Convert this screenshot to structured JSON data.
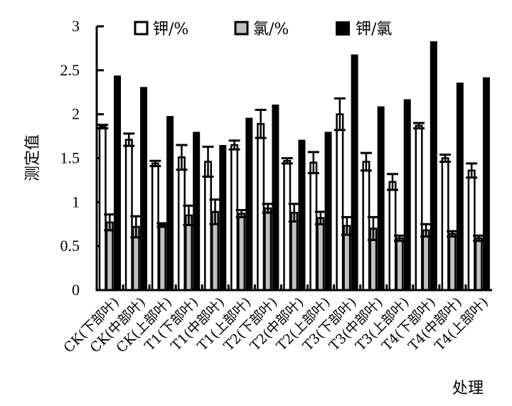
{
  "chart_data": {
    "type": "bar",
    "title": "",
    "xlabel": "处理",
    "ylabel": "测定值",
    "ylim": [
      0,
      3
    ],
    "yticks": [
      "0",
      "0.5",
      "1",
      "1.5",
      "2",
      "2.5",
      "3"
    ],
    "ytick_values": [
      0,
      0.5,
      1,
      1.5,
      2,
      2.5,
      3
    ],
    "grid": false,
    "legend_position": "top",
    "categories": [
      "CK(下部叶)",
      "CK(中部叶)",
      "CK(上部叶)",
      "T1(下部叶)",
      "T1(中部叶)",
      "T1(上部叶)",
      "T2(下部叶)",
      "T2(中部叶)",
      "T2(上部叶)",
      "T3(下部叶)",
      "T3(中部叶)",
      "T3(上部叶)",
      "T4(下部叶)",
      "T4(中部叶)",
      "T4(上部叶)"
    ],
    "series": [
      {
        "name": "钾/%",
        "fill": "#ffffff",
        "values": [
          1.86,
          1.71,
          1.44,
          1.51,
          1.46,
          1.65,
          1.89,
          1.47,
          1.45,
          2.0,
          1.46,
          1.23,
          1.87,
          1.5,
          1.36
        ],
        "errors": [
          0.02,
          0.07,
          0.03,
          0.14,
          0.17,
          0.05,
          0.16,
          0.03,
          0.12,
          0.18,
          0.1,
          0.09,
          0.03,
          0.04,
          0.08
        ]
      },
      {
        "name": "氯/%",
        "fill": "#c0c0c0",
        "values": [
          0.77,
          0.72,
          0.74,
          0.85,
          0.89,
          0.87,
          0.93,
          0.88,
          0.82,
          0.73,
          0.7,
          0.59,
          0.68,
          0.64,
          0.59
        ],
        "errors": [
          0.09,
          0.12,
          0.02,
          0.11,
          0.14,
          0.04,
          0.05,
          0.1,
          0.07,
          0.1,
          0.13,
          0.03,
          0.07,
          0.03,
          0.03
        ]
      },
      {
        "name": "钾/氯",
        "fill": "#000000",
        "values": [
          2.44,
          2.31,
          1.98,
          1.8,
          1.65,
          1.96,
          2.11,
          1.71,
          1.8,
          2.68,
          2.09,
          2.17,
          2.83,
          2.36,
          2.42
        ],
        "errors": []
      }
    ]
  }
}
